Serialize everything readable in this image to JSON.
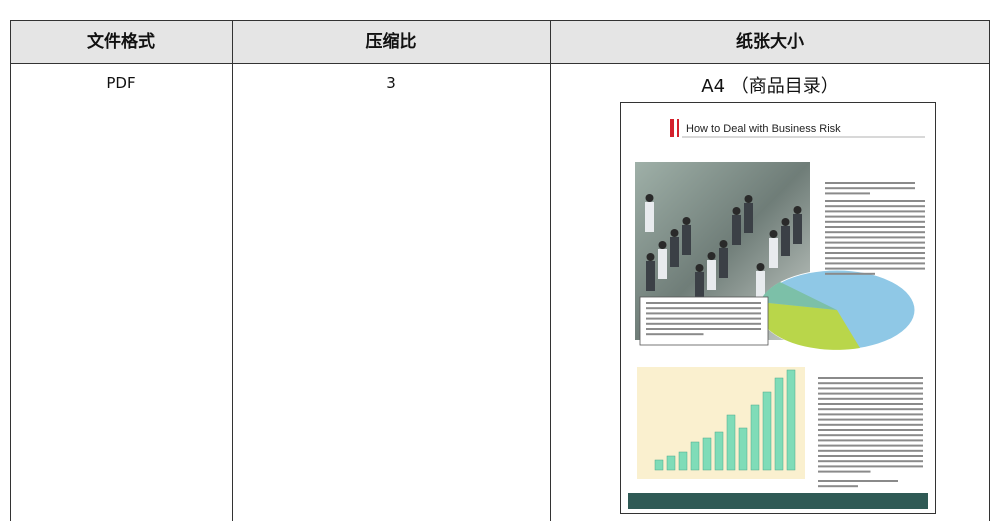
{
  "table": {
    "header": [
      "文件格式",
      "压缩比",
      "纸张大小"
    ],
    "rows": [
      [
        "PDF",
        "3",
        "A4 （商品目录）"
      ]
    ]
  },
  "image": {
    "title": "How to Deal with Business Risk"
  }
}
